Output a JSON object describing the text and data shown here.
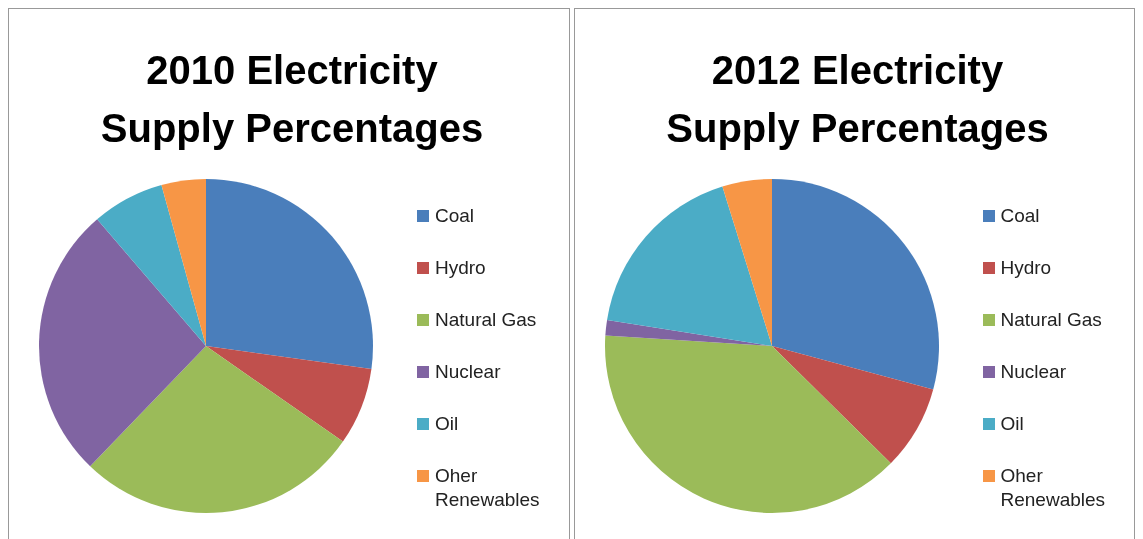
{
  "chart_data": [
    {
      "type": "pie",
      "title": "2010 Electricity Supply Percentages",
      "categories": [
        "Coal",
        "Hydro",
        "Natural Gas",
        "Nuclear",
        "Oil",
        "Oher Renewables"
      ],
      "values": [
        27.2,
        7.5,
        27.5,
        26.5,
        7.0,
        4.3
      ],
      "colors": [
        "#4a7ebb",
        "#c0504d",
        "#9bbb59",
        "#8064a2",
        "#4bacc6",
        "#f79646"
      ],
      "legend": "right"
    },
    {
      "type": "pie",
      "title": "2012 Electricity Supply Percentages",
      "categories": [
        "Coal",
        "Hydro",
        "Natural Gas",
        "Nuclear",
        "Oil",
        "Oher Renewables"
      ],
      "values": [
        29.2,
        8.2,
        38.6,
        1.5,
        17.7,
        4.8
      ],
      "colors": [
        "#4a7ebb",
        "#c0504d",
        "#9bbb59",
        "#8064a2",
        "#4bacc6",
        "#f79646"
      ],
      "legend": "right"
    }
  ]
}
